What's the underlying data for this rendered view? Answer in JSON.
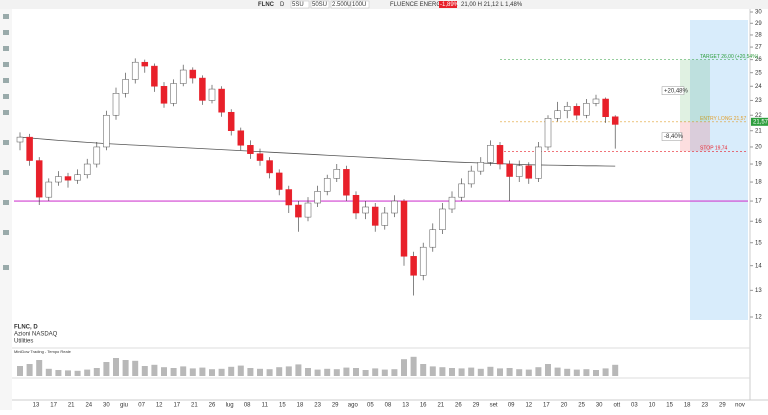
{
  "chart_data": {
    "type": "candlestick",
    "header": {
      "symbol": "FLNC",
      "interval": "D",
      "buttons": [
        "5SU",
        "50SU",
        "2.500U",
        "100U"
      ],
      "company": "FLUENCE ENERGY INC.",
      "change": "-1,89%",
      "quote": "21,00 H 21,12 L 1,48%"
    },
    "info": [
      "FLNC, D",
      "Azioni NASDAQ",
      "Utilities"
    ],
    "indicator_label": "MiniDow Trading - Tempo Reale",
    "ylim": [
      12,
      30
    ],
    "log_scale": true,
    "yticks": [
      12,
      13,
      14,
      15,
      16,
      17,
      18,
      19,
      20,
      21,
      22,
      23,
      24,
      25,
      26,
      27,
      28,
      29,
      30
    ],
    "date_labels": [
      "13",
      "17",
      "21",
      "24",
      "30",
      "giu",
      "07",
      "12",
      "17",
      "21",
      "26",
      "lug",
      "08",
      "11",
      "15",
      "18",
      "23",
      "29",
      "ago",
      "05",
      "08",
      "13",
      "16",
      "21",
      "26",
      "29",
      "set",
      "09",
      "12",
      "17",
      "20",
      "25",
      "30",
      "ott",
      "03",
      "10",
      "15",
      "18",
      "23",
      "29",
      "nov"
    ],
    "up_color": "#ffffff",
    "down_color": "#e8202a",
    "open": [
      20.3,
      20.6,
      19.2,
      17.2,
      18.0,
      18.3,
      18.1,
      18.4,
      19.0,
      20.0,
      22.0,
      23.5,
      24.5,
      25.8,
      25.5,
      24.0,
      22.8,
      24.2,
      25.2,
      24.6,
      23.0,
      23.8,
      22.2,
      21.0,
      20.1,
      19.6,
      19.2,
      18.5,
      17.6,
      16.8,
      16.2,
      16.9,
      17.5,
      18.2,
      18.7,
      17.3,
      16.4,
      16.7,
      15.8,
      16.4,
      17.0,
      14.4,
      13.6,
      14.8,
      15.6,
      16.6,
      17.2,
      17.9,
      18.6,
      19.1,
      20.1,
      19.0,
      18.3,
      18.9,
      18.2,
      20.0,
      21.8,
      22.3,
      22.6,
      22.0,
      22.8,
      23.1,
      21.9
    ],
    "high": [
      20.9,
      20.8,
      19.4,
      18.2,
      18.6,
      18.5,
      18.7,
      19.3,
      20.3,
      22.3,
      23.9,
      25.0,
      26.1,
      26.0,
      25.7,
      24.3,
      24.5,
      25.6,
      25.4,
      24.8,
      24.1,
      24.0,
      22.4,
      21.2,
      20.4,
      19.9,
      19.4,
      18.7,
      17.8,
      17.0,
      17.2,
      17.8,
      18.4,
      19.0,
      18.9,
      17.5,
      17.0,
      16.9,
      16.7,
      17.3,
      17.1,
      14.6,
      15.0,
      15.9,
      16.9,
      17.5,
      18.2,
      18.9,
      19.4,
      20.4,
      20.3,
      19.2,
      19.2,
      19.1,
      20.3,
      22.0,
      22.9,
      22.9,
      22.8,
      23.1,
      23.4,
      23.2,
      22.0
    ],
    "low": [
      19.8,
      18.9,
      16.8,
      17.0,
      17.8,
      17.7,
      17.9,
      18.2,
      18.8,
      19.8,
      21.7,
      23.2,
      24.2,
      25.0,
      23.6,
      22.5,
      22.6,
      24.0,
      24.2,
      22.7,
      22.8,
      21.9,
      20.7,
      19.8,
      19.3,
      18.9,
      18.2,
      17.3,
      16.4,
      15.5,
      16.0,
      16.7,
      17.3,
      18.0,
      17.0,
      16.1,
      16.1,
      15.5,
      15.6,
      16.2,
      14.0,
      12.8,
      13.4,
      14.6,
      15.4,
      16.4,
      17.0,
      17.7,
      18.4,
      18.9,
      18.7,
      17.0,
      18.0,
      17.9,
      18.0,
      19.8,
      21.6,
      21.8,
      21.7,
      21.8,
      22.6,
      21.5,
      19.9
    ],
    "close": [
      20.6,
      19.2,
      17.2,
      18.0,
      18.3,
      18.1,
      18.4,
      19.0,
      20.0,
      22.0,
      23.5,
      24.5,
      25.8,
      25.5,
      24.0,
      22.8,
      24.2,
      25.2,
      24.6,
      23.0,
      23.8,
      22.2,
      21.0,
      20.1,
      19.6,
      19.2,
      18.5,
      17.6,
      16.8,
      16.2,
      16.9,
      17.5,
      18.2,
      18.7,
      17.3,
      16.4,
      16.7,
      15.8,
      16.4,
      17.0,
      14.4,
      13.6,
      14.8,
      15.6,
      16.6,
      17.2,
      17.9,
      18.6,
      19.1,
      20.1,
      19.0,
      18.3,
      18.9,
      18.2,
      20.0,
      21.8,
      22.3,
      22.6,
      22.0,
      22.8,
      23.1,
      21.9,
      21.4
    ],
    "moving_average": {
      "color": "#555555",
      "values": [
        20.6,
        20.55,
        20.5,
        20.45,
        20.4,
        20.36,
        20.32,
        20.28,
        20.24,
        20.2,
        20.17,
        20.14,
        20.11,
        20.08,
        20.05,
        20.02,
        19.99,
        19.96,
        19.93,
        19.9,
        19.87,
        19.84,
        19.81,
        19.78,
        19.75,
        19.72,
        19.69,
        19.66,
        19.63,
        19.6,
        19.57,
        19.54,
        19.51,
        19.48,
        19.45,
        19.42,
        19.39,
        19.36,
        19.33,
        19.3,
        19.27,
        19.24,
        19.21,
        19.18,
        19.15,
        19.12,
        19.1,
        19.08,
        19.06,
        19.04,
        19.02,
        19.0,
        18.98,
        18.96,
        18.95,
        18.94,
        18.93,
        18.92,
        18.91,
        18.9,
        18.9,
        18.89,
        18.88
      ]
    },
    "volume": [
      2.5,
      3.0,
      4.0,
      1.8,
      1.5,
      1.4,
      1.3,
      1.6,
      2.0,
      3.5,
      4.5,
      4.0,
      3.8,
      2.5,
      2.8,
      2.2,
      2.0,
      2.4,
      1.9,
      2.1,
      1.7,
      1.8,
      2.3,
      2.6,
      2.0,
      1.8,
      1.7,
      2.2,
      2.4,
      2.9,
      2.0,
      1.6,
      1.8,
      1.7,
      2.1,
      2.0,
      1.5,
      1.9,
      1.6,
      1.7,
      4.2,
      4.8,
      3.0,
      2.4,
      2.2,
      2.0,
      1.9,
      2.1,
      1.8,
      2.3,
      1.9,
      2.0,
      1.7,
      1.6,
      2.2,
      3.0,
      2.1,
      1.8,
      1.6,
      1.7,
      1.5,
      1.9,
      2.8
    ],
    "volume_ylim": [
      0,
      5
    ],
    "volume_color": "#b8b8b8",
    "levels": [
      {
        "label": "TARGET 26,00 (+20,54%)",
        "value": 26,
        "color": "#2e9e3e"
      },
      {
        "label": "ENTRY LONG 21,57",
        "value": 21.57,
        "color": "#e0a030"
      },
      {
        "label": "STOP 19,74",
        "value": 19.74,
        "color": "#e8202a"
      },
      {
        "value": 17,
        "color": "#d040d0"
      }
    ],
    "percent_labels": [
      "+20,48%",
      "-8,40%"
    ],
    "price_tag": {
      "label": "21,57",
      "value": 21.57,
      "color": "#2e9e3e"
    }
  }
}
